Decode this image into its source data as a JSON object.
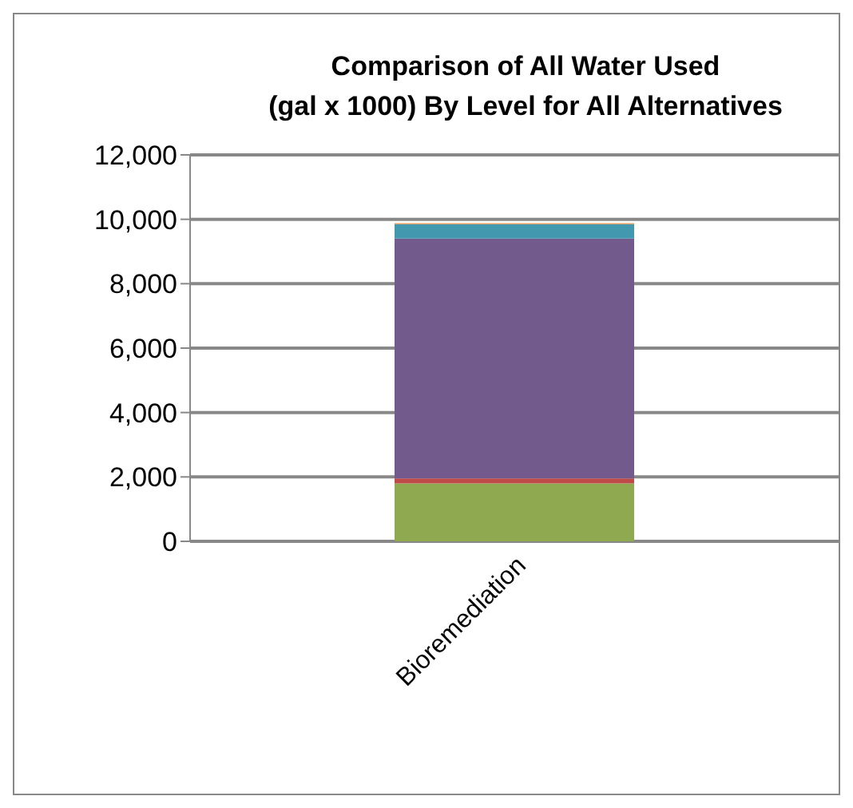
{
  "chart_data": {
    "type": "bar",
    "title": "Comparison of All Water Used\n(gal x 1000)  By Level for All Alternatives",
    "categories": [
      "Bioremediation"
    ],
    "stacked": true,
    "series": [
      {
        "color": "#8ea94f",
        "values": [
          1800
        ]
      },
      {
        "color": "#be4b48",
        "values": [
          150
        ]
      },
      {
        "color": "#725a8d",
        "values": [
          7450
        ]
      },
      {
        "color": "#4298ae",
        "values": [
          450
        ]
      },
      {
        "color": "#e8904a",
        "values": [
          30
        ]
      }
    ],
    "ylim": [
      0,
      12000
    ],
    "yticks": [
      {
        "value": 0,
        "label": "0"
      },
      {
        "value": 2000,
        "label": "2,000"
      },
      {
        "value": 4000,
        "label": "4,000"
      },
      {
        "value": 6000,
        "label": "6,000"
      },
      {
        "value": 8000,
        "label": "8,000"
      },
      {
        "value": 10000,
        "label": "10,000"
      },
      {
        "value": 12000,
        "label": "12,000"
      }
    ],
    "grid": "y",
    "legend": false
  }
}
